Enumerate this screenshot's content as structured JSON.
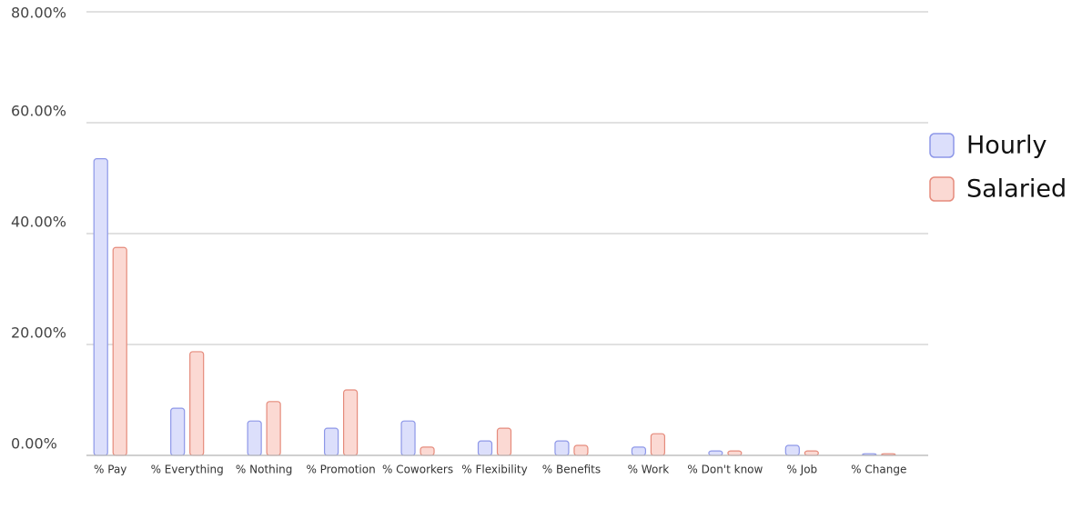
{
  "chart_data": {
    "type": "bar",
    "categories": [
      "% Pay",
      "% Everything",
      "% Nothing",
      "% Promotion",
      "% Coworkers",
      "% Flexibility",
      "% Benefits",
      "% Work",
      "% Don't know",
      "% Job",
      "% Change"
    ],
    "series": [
      {
        "name": "Hourly",
        "color": "#dcdffb",
        "values": [
          53.5,
          8.5,
          6.2,
          4.9,
          6.2,
          2.6,
          2.6,
          1.5,
          0.8,
          1.8,
          0.3
        ]
      },
      {
        "name": "Salaried",
        "color": "#fbd9d3",
        "values": [
          37.5,
          18.7,
          9.7,
          11.8,
          1.5,
          4.9,
          1.8,
          3.9,
          0.8,
          0.8,
          0.3
        ]
      }
    ],
    "ylim": [
      0,
      80
    ],
    "yticks": [
      {
        "value": 0,
        "label": "0.00%"
      },
      {
        "value": 20,
        "label": "20.00%"
      },
      {
        "value": 40,
        "label": "40.00%"
      },
      {
        "value": 60,
        "label": "60.00%"
      },
      {
        "value": 80,
        "label": "80.00%"
      }
    ],
    "grid": true,
    "legend": "right"
  }
}
